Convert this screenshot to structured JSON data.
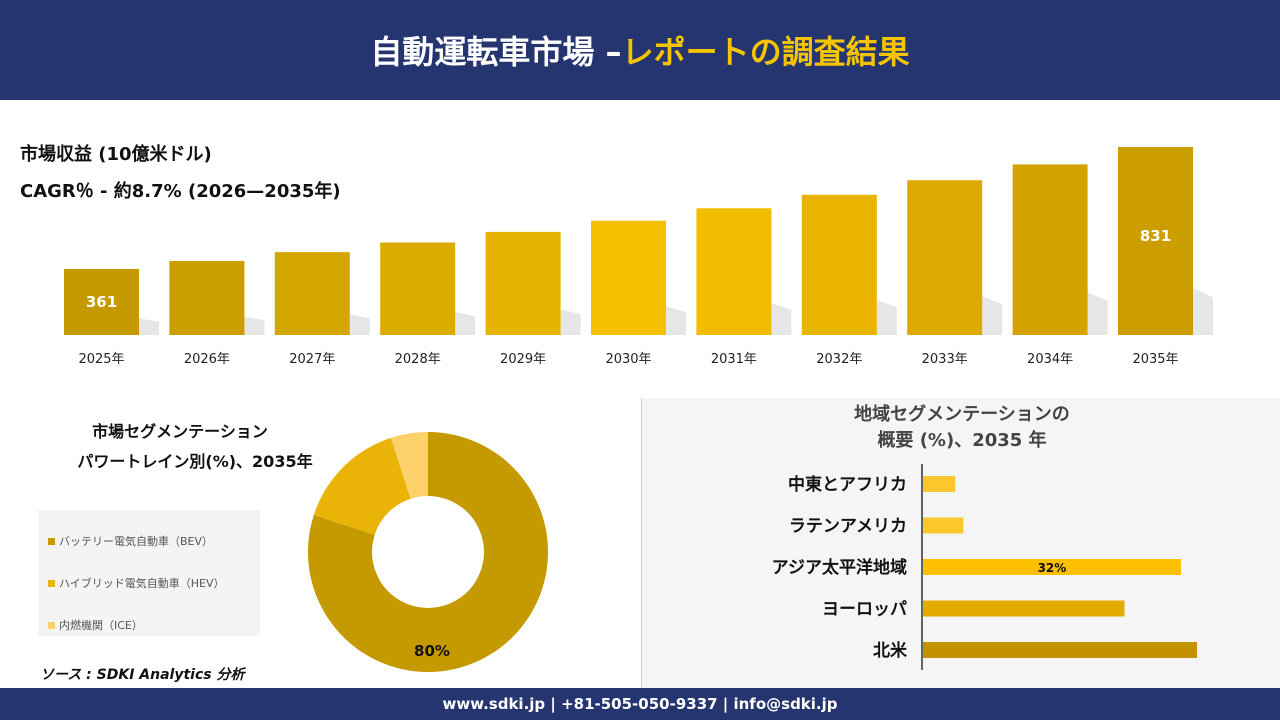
{
  "header": {
    "title_white": "自動運転車市場 –",
    "title_yellow": "レポートの調査結果"
  },
  "revenue": {
    "label": "市場収益 (10億米ドル)",
    "cagr": "CAGR％ - 約8.7% (2026—2035年)"
  },
  "chart_data": [
    {
      "type": "bar",
      "categories": [
        "2025年",
        "2026年",
        "2027年",
        "2028年",
        "2029年",
        "2030年",
        "2031年",
        "2032年",
        "2033年",
        "2034年",
        "2035年"
      ],
      "values": [
        361,
        392,
        426,
        463,
        504,
        547,
        595,
        647,
        703,
        764,
        831
      ],
      "data_labels": {
        "0": "361",
        "10": "831"
      },
      "colors": [
        "#c49a00",
        "#cc9f00",
        "#d4a600",
        "#dcab00",
        "#e6b400",
        "#f5c000",
        "#f2bd00",
        "#e8b400",
        "#dcaa00",
        "#d4a300",
        "#cb9d00"
      ]
    },
    {
      "type": "pie",
      "donut": true,
      "title": [
        "市場セグメンテーション",
        "パワートレイン別(%)、2035年"
      ],
      "categories": [
        "バッテリー電気自動車（BEV）",
        "ハイブリッド電気自動車（HEV）",
        "内燃機関（ICE）"
      ],
      "values": [
        80,
        15,
        5
      ],
      "colors": [
        "#c49a00",
        "#eab308",
        "#fcd16b"
      ],
      "data_labels": {
        "0": "80%"
      }
    },
    {
      "type": "bar",
      "orientation": "horizontal",
      "title": [
        "地域セグメンテーションの",
        "概要 (%)、2035 年"
      ],
      "categories": [
        "中東とアフリカ",
        "ラテンアメリカ",
        "アジア太平洋地域",
        "ヨーロッパ",
        "北米"
      ],
      "values": [
        4,
        5,
        32,
        25,
        34
      ],
      "colors": [
        "#fcc72c",
        "#fcc72c",
        "#fcc000",
        "#e2ac00",
        "#c49200"
      ],
      "data_labels": {
        "2": "32%"
      }
    }
  ],
  "source": "ソース : SDKI Analytics 分析",
  "footer": "www.sdki.jp | +81-505-050-9337 | info@sdki.jp"
}
